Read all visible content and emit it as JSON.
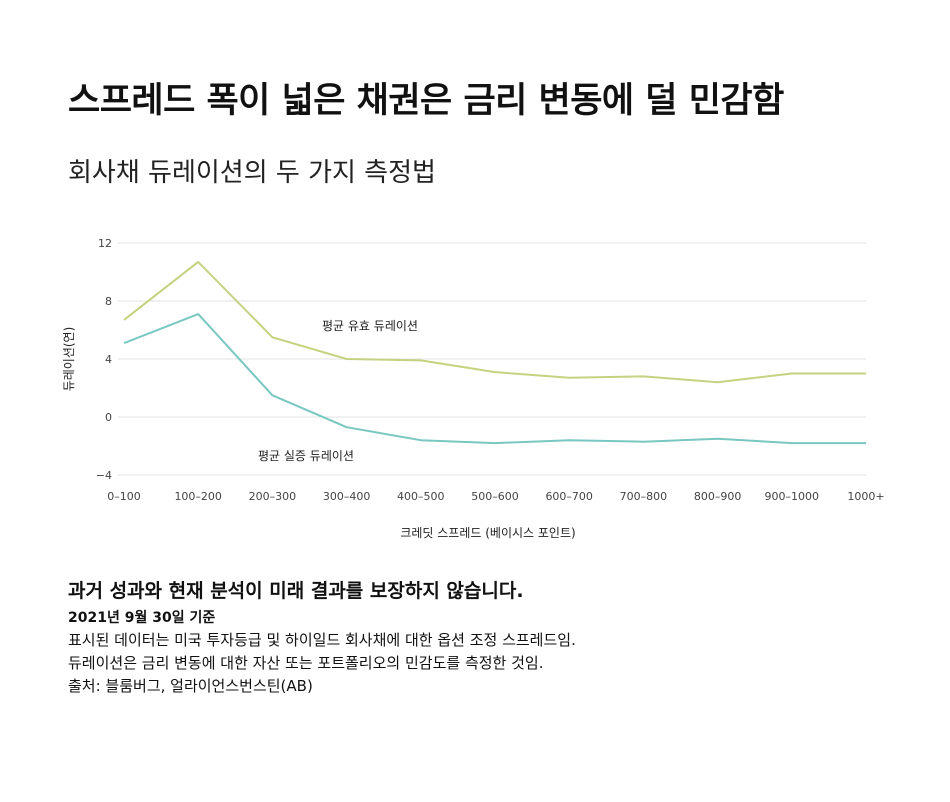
{
  "header": {
    "title": "스프레드 폭이 넓은 채권은 금리 변동에 덜 민감함",
    "subtitle": "회사채 듀레이션의 두 가지 측정법"
  },
  "chart_data": {
    "type": "line",
    "categories": [
      "0–100",
      "100–200",
      "200–300",
      "300–400",
      "400–500",
      "500–600",
      "600–700",
      "700–800",
      "800–900",
      "900–1000",
      "1000+"
    ],
    "series": [
      {
        "name": "평균 유효 듀레이션",
        "color": "#c5d27f",
        "values": [
          6.7,
          10.7,
          5.5,
          4.0,
          3.9,
          3.1,
          2.7,
          2.8,
          2.4,
          3.0,
          3.0
        ]
      },
      {
        "name": "평균 실증 듀레이션",
        "color": "#79c7c1",
        "values": [
          5.1,
          7.1,
          1.5,
          -0.7,
          -1.6,
          -1.8,
          -1.6,
          -1.7,
          -1.5,
          -1.8,
          -1.8
        ]
      }
    ],
    "xlabel": "크레딧 스프레드 (베이시스 포인트)",
    "ylabel": "듀레이션(연)",
    "ylim": [
      -4,
      12
    ],
    "yticks": [
      12,
      8,
      4,
      0,
      -4
    ],
    "grid": true
  },
  "notes": {
    "disclaimer": "과거 성과와 현재 분석이 미래 결과를 보장하지 않습니다.",
    "as_of": "2021년 9월 30일 기준",
    "lines": [
      "표시된 데이터는 미국 투자등급 및 하이일드 회사채에 대한 옵션 조정 스프레드임.",
      "듀레이션은 금리 변동에 대한 자산 또는 포트폴리오의 민감도를 측정한 것임.",
      "출처: 블룸버그, 얼라이언스번스틴(AB)"
    ]
  }
}
